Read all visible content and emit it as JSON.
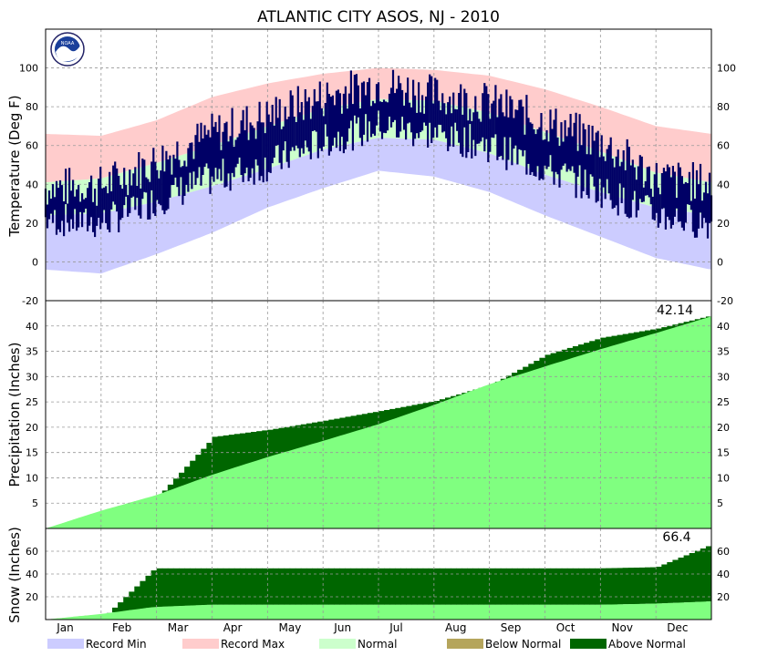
{
  "title": "ATLANTIC CITY  ASOS, NJ - 2010",
  "logo_text": "NOAA",
  "months": [
    "Jan",
    "Feb",
    "Mar",
    "Apr",
    "May",
    "Jun",
    "Jul",
    "Aug",
    "Sep",
    "Oct",
    "Nov",
    "Dec"
  ],
  "legend": {
    "record_min": "Record Min",
    "record_max": "Record Max",
    "normal": "Normal",
    "below_normal": "Below Normal",
    "above_normal": "Above Normal"
  },
  "colors": {
    "record_min": "#ccccff",
    "record_max": "#ffcccc",
    "normal": "#ccffcc",
    "below_normal": "#b5a55c",
    "above_normal": "#006600",
    "observed": "#000066",
    "precip_normal": "#80ff80",
    "grid": "#999999"
  },
  "chart_data": [
    {
      "type": "area",
      "panel": "temperature",
      "ylabel": "Temperature (Deg F)",
      "ylim": [
        -20,
        120
      ],
      "yticks": [
        -20,
        0,
        20,
        40,
        60,
        80,
        100
      ],
      "x": [
        "Jan 1",
        "Feb 1",
        "Mar 1",
        "Apr 1",
        "May 1",
        "Jun 1",
        "Jul 1",
        "Aug 1",
        "Sep 1",
        "Oct 1",
        "Nov 1",
        "Dec 1",
        "Dec 31"
      ],
      "series": [
        {
          "name": "Record Max",
          "values": [
            66,
            65,
            73,
            85,
            92,
            97,
            100,
            99,
            96,
            89,
            80,
            70,
            66
          ]
        },
        {
          "name": "Normal High",
          "values": [
            41,
            43,
            51,
            60,
            70,
            79,
            84,
            83,
            77,
            67,
            57,
            46,
            41
          ]
        },
        {
          "name": "Normal Low",
          "values": [
            24,
            25,
            31,
            39,
            48,
            58,
            64,
            63,
            56,
            45,
            36,
            28,
            24
          ]
        },
        {
          "name": "Record Min",
          "values": [
            -4,
            -6,
            4,
            15,
            28,
            38,
            47,
            44,
            36,
            24,
            13,
            2,
            -4
          ]
        },
        {
          "name": "Observed High",
          "values": [
            38,
            39,
            52,
            66,
            75,
            85,
            92,
            86,
            82,
            72,
            62,
            43,
            40
          ]
        },
        {
          "name": "Observed Low",
          "values": [
            22,
            20,
            32,
            43,
            50,
            62,
            70,
            66,
            60,
            48,
            37,
            24,
            20
          ]
        }
      ],
      "grid": true
    },
    {
      "type": "area",
      "panel": "precipitation",
      "ylabel": "Precipitation (Inches)",
      "ylim": [
        0,
        45
      ],
      "yticks": [
        5,
        10,
        15,
        20,
        25,
        30,
        35,
        40
      ],
      "annotation": "42.14",
      "x": [
        "Jan 1",
        "Jan 31",
        "Feb 28",
        "Mar 31",
        "Apr 30",
        "May 31",
        "Jun 30",
        "Jul 31",
        "Aug 31",
        "Sep 30",
        "Oct 31",
        "Nov 30",
        "Dec 31"
      ],
      "series": [
        {
          "name": "Observed",
          "values": [
            0,
            3.4,
            6.3,
            18.1,
            19.5,
            21.3,
            23.2,
            25.2,
            28.4,
            34.3,
            37.7,
            39.5,
            42.14
          ]
        },
        {
          "name": "Normal",
          "values": [
            0,
            3.5,
            6.6,
            10.6,
            14.1,
            17.3,
            20.6,
            24.4,
            28.5,
            32.0,
            35.4,
            38.6,
            41.9
          ]
        }
      ],
      "grid": true
    },
    {
      "type": "area",
      "panel": "snow",
      "ylabel": "Snow (Inches)",
      "ylim": [
        0,
        80
      ],
      "yticks": [
        20,
        40,
        60
      ],
      "annotation": "66.4",
      "x": [
        "Jan 1",
        "Jan 31",
        "Feb 28",
        "Mar 31",
        "Apr 30",
        "Oct 31",
        "Nov 30",
        "Dec 31"
      ],
      "series": [
        {
          "name": "Observed",
          "values": [
            0,
            2,
            45,
            45,
            45,
            45,
            46,
            66.4
          ]
        },
        {
          "name": "Normal",
          "values": [
            0,
            5,
            11,
            13,
            13,
            13,
            14,
            16
          ]
        }
      ],
      "grid": true
    }
  ]
}
